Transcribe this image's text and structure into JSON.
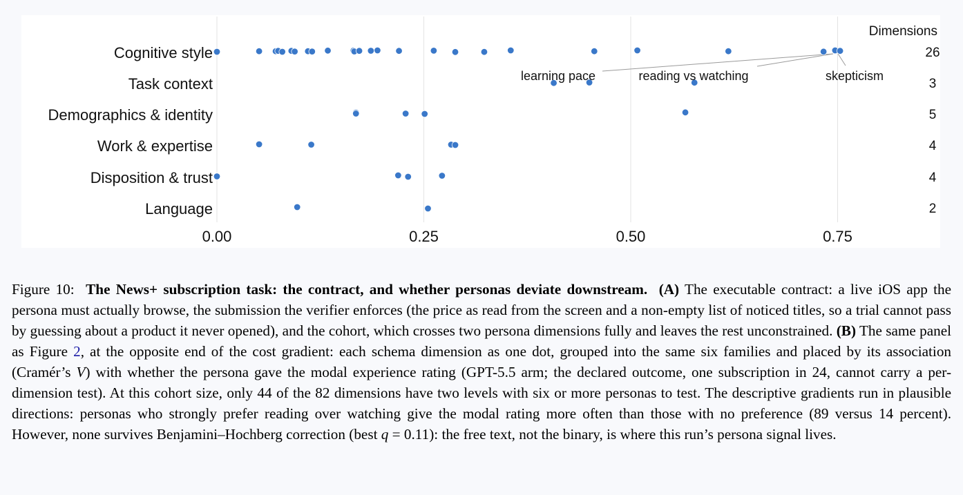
{
  "chart_data": {
    "type": "scatter",
    "title": "",
    "xlabel": "",
    "ylabel": "",
    "xlim": [
      0,
      0.87
    ],
    "x_ticks": [
      "0.00",
      "0.25",
      "0.50",
      "0.75"
    ],
    "x_tick_values": [
      0.0,
      0.25,
      0.5,
      0.75
    ],
    "grid": "vertical",
    "count_header": "Dimensions",
    "categories": [
      "Cognitive style",
      "Task context",
      "Demographics & identity",
      "Work & expertise",
      "Disposition & trust",
      "Language"
    ],
    "counts": [
      "26",
      "3",
      "5",
      "4",
      "4",
      "2"
    ],
    "point_color": "#3a78c9",
    "series": [
      {
        "category": "Cognitive style",
        "points": [
          {
            "x": 0.0,
            "j": 0.0
          },
          {
            "x": 0.051,
            "j": -0.8
          },
          {
            "x": 0.071,
            "j": -0.8
          },
          {
            "x": 0.074,
            "j": -1.3
          },
          {
            "x": 0.079,
            "j": 0.0
          },
          {
            "x": 0.09,
            "j": -1.3
          },
          {
            "x": 0.094,
            "j": -0.4
          },
          {
            "x": 0.11,
            "j": -0.8
          },
          {
            "x": 0.115,
            "j": -0.4
          },
          {
            "x": 0.134,
            "j": -1.7
          },
          {
            "x": 0.165,
            "j": -1.7
          },
          {
            "x": 0.166,
            "j": -0.5
          },
          {
            "x": 0.172,
            "j": -1.3
          },
          {
            "x": 0.186,
            "j": -1.5
          },
          {
            "x": 0.194,
            "j": -2.0
          },
          {
            "x": 0.22,
            "j": -1.3
          },
          {
            "x": 0.262,
            "j": -1.6
          },
          {
            "x": 0.288,
            "j": 0.3
          },
          {
            "x": 0.323,
            "j": 0.2
          },
          {
            "x": 0.355,
            "j": -2.0
          },
          {
            "x": 0.456,
            "j": -0.8
          },
          {
            "x": 0.508,
            "j": -2.0
          },
          {
            "x": 0.618,
            "j": -0.8
          },
          {
            "x": 0.733,
            "j": -0.2
          },
          {
            "x": 0.747,
            "j": -2.0
          },
          {
            "x": 0.753,
            "j": -1.3
          }
        ]
      },
      {
        "category": "Task context",
        "points": [
          {
            "x": 0.407,
            "j": 0.2
          },
          {
            "x": 0.45,
            "j": -0.5
          },
          {
            "x": 0.577,
            "j": -0.3
          }
        ]
      },
      {
        "category": "Demographics & identity",
        "points": [
          {
            "x": 0.168,
            "j": -2.0
          },
          {
            "x": 0.168,
            "j": -0.5
          },
          {
            "x": 0.228,
            "j": -0.5
          },
          {
            "x": 0.251,
            "j": 0.0
          },
          {
            "x": 0.566,
            "j": -2.2
          }
        ]
      },
      {
        "category": "Work & expertise",
        "points": [
          {
            "x": 0.051,
            "j": -1.0
          },
          {
            "x": 0.114,
            "j": -0.5
          },
          {
            "x": 0.283,
            "j": -0.5
          },
          {
            "x": 0.288,
            "j": 0.0
          }
        ]
      },
      {
        "category": "Disposition & trust",
        "points": [
          {
            "x": 0.0,
            "j": -0.5
          },
          {
            "x": 0.219,
            "j": -2.0
          },
          {
            "x": 0.231,
            "j": 0.0
          },
          {
            "x": 0.272,
            "j": -1.5
          }
        ]
      },
      {
        "category": "Language",
        "points": [
          {
            "x": 0.097,
            "j": -1.0
          },
          {
            "x": 0.255,
            "j": 1.0
          }
        ]
      }
    ],
    "annotations": [
      {
        "text": "learning pace",
        "target": {
          "category": "Cognitive style",
          "x": 0.747
        }
      },
      {
        "text": "reading vs watching",
        "target": {
          "category": "Cognitive style",
          "x": 0.747
        }
      },
      {
        "text": "skepticism",
        "target": {
          "category": "Cognitive style",
          "x": 0.753
        }
      }
    ]
  },
  "caption": {
    "figure_label": "Figure 10:",
    "title": "The News+ subscription task: the contract, and whether personas deviate downstream.",
    "part_a_label": "(A)",
    "part_a_text": "The executable contract: a live iOS app the persona must actually browse, the submission the verifier enforces (the price as read from the screen and a non-empty list of noticed titles, so a trial cannot pass by guessing about a product it never opened), and the cohort, which crosses two persona dimensions fully and leaves the rest unconstrained.",
    "part_b_label": "(B)",
    "part_b_text_1": "The same panel as Figure",
    "part_b_ref": "2",
    "part_b_text_2": ", at the opposite end of the cost gradient: each schema dimension as one dot, grouped into the same six families and placed by its association (Cramér’s",
    "part_b_var": "V",
    "part_b_text_3": ") with whether the persona gave the modal experience rating (GPT-5.5 arm; the declared outcome, one subscription in 24, cannot carry a per-dimension test). At this cohort size, only 44 of the 82 dimensions have two levels with six or more personas to test. The descriptive gradients run in plausible directions: personas who strongly prefer reading over watching give the modal rating more often than those with no preference (89 versus 14 percent). However, none survives Benjamini–Hochberg correction (best",
    "q_var": "q",
    "q_value": " = 0.11): the free text, not the binary, is where this run’s persona signal lives."
  }
}
